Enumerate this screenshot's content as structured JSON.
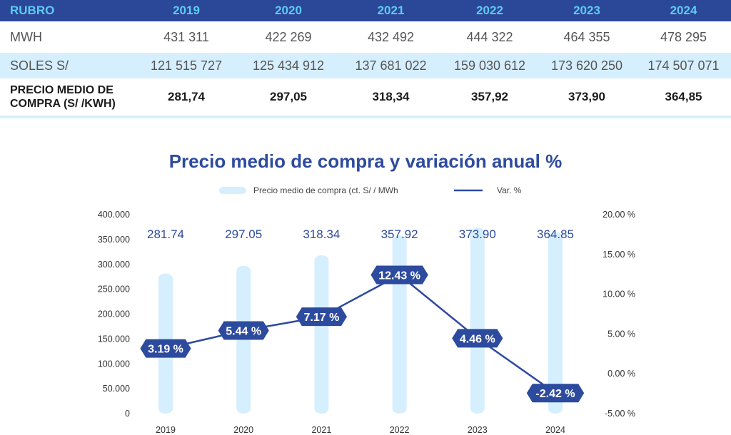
{
  "table": {
    "headers": [
      "RUBRO",
      "2019",
      "2020",
      "2021",
      "2022",
      "2023",
      "2024"
    ],
    "rows": [
      {
        "label": "MWH",
        "values": [
          "431 311",
          "422 269",
          "432 492",
          "444 322",
          "464 355",
          "478 295"
        ]
      },
      {
        "label": "SOLES S/",
        "values": [
          "121 515 727",
          "125 434 912",
          "137 681 022",
          "159 030 612",
          "173 620 250",
          "174 507 071"
        ]
      },
      {
        "label_line1": "PRECIO MEDIO DE",
        "label_line2": "COMPRA (S/ /KWH)",
        "values": [
          "281,74",
          "297,05",
          "318,34",
          "357,92",
          "373,90",
          "364,85"
        ]
      }
    ]
  },
  "chart_data": {
    "type": "bar",
    "title": "Precio medio de compra y variación anual %",
    "categories": [
      "2019",
      "2020",
      "2021",
      "2022",
      "2023",
      "2024"
    ],
    "series": [
      {
        "name": "Precio medio de compra (ct. S/ / MWh",
        "type": "bar",
        "axis": "left",
        "values": [
          281.74,
          297.05,
          318.34,
          357.92,
          373.9,
          364.85
        ],
        "labels": [
          "281.74",
          "297.05",
          "318.34",
          "357.92",
          "373.90",
          "364.85"
        ]
      },
      {
        "name": "Var. %",
        "type": "line",
        "axis": "right",
        "values": [
          3.19,
          5.44,
          7.17,
          12.43,
          4.46,
          -2.42
        ],
        "labels": [
          "3.19 %",
          "5.44 %",
          "7.17 %",
          "12.43 %",
          "4.46 %",
          "-2.42 %"
        ]
      }
    ],
    "y_left": {
      "ylim": [
        0,
        400
      ],
      "ticks": [
        0,
        50,
        100,
        150,
        200,
        250,
        300,
        350,
        400
      ],
      "tick_labels": [
        "0",
        "50.000",
        "100.000",
        "150.000",
        "200.000",
        "250.000",
        "300.000",
        "350.000",
        "400.000"
      ]
    },
    "y_right": {
      "ylim": [
        -5,
        20
      ],
      "ticks": [
        -5,
        0,
        5,
        10,
        15,
        20
      ],
      "tick_labels": [
        "-5.00 %",
        "0.00 %",
        "5.00 %",
        "10.00 %",
        "15.00 %",
        "20.00 %"
      ]
    },
    "grid": false,
    "legend_position": "top",
    "colors": {
      "bar": "#d6efff",
      "line": "#2d4b9e",
      "label_bg": "#2d4b9e",
      "title": "#2d4b9e"
    }
  }
}
